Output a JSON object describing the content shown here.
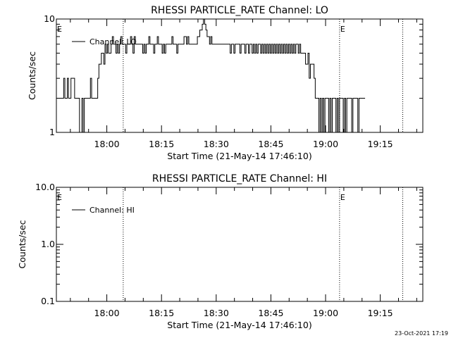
{
  "footer_stamp": "23-Oct-2021 17:19",
  "chart_data": [
    {
      "type": "line",
      "title": "RHESSI PARTICLE_RATE Channel: LO",
      "xlabel": "Start Time (21-May-14 17:46:10)",
      "ylabel": "Counts/sec",
      "yscale": "log",
      "ylim": [
        1,
        10
      ],
      "xlim": [
        "17:46:10",
        "19:26:40"
      ],
      "xticks": [
        "18:00",
        "18:15",
        "18:30",
        "18:45",
        "19:00",
        "19:15"
      ],
      "yticks": [
        "1",
        "10"
      ],
      "legend": "top-left",
      "event_lines": [
        {
          "time": "18:04:30",
          "label": ""
        },
        {
          "time": "19:03:50",
          "label": "E"
        },
        {
          "time": "19:21:10",
          "label": ""
        }
      ],
      "corner_label": "E",
      "series": [
        {
          "name": "Channel: LO",
          "x_start": "17:46:10",
          "x_step_sec": 20,
          "values": [
            2,
            2,
            2,
            2,
            2,
            2,
            3,
            2,
            2,
            3,
            2,
            2,
            3,
            3,
            3,
            2,
            2,
            2,
            2,
            1,
            1,
            2,
            1,
            2,
            2,
            2,
            2,
            2,
            3,
            2,
            2,
            2,
            2,
            2,
            3,
            4,
            4,
            5,
            5,
            4,
            6,
            5,
            6,
            5,
            5,
            6,
            7,
            6,
            6,
            5,
            6,
            5,
            6,
            7,
            6,
            6,
            6,
            5,
            6,
            6,
            6,
            7,
            6,
            5,
            7,
            6,
            6,
            6,
            6,
            6,
            6,
            5,
            6,
            5,
            6,
            6,
            7,
            6,
            6,
            6,
            5,
            6,
            6,
            7,
            6,
            6,
            6,
            5,
            6,
            5,
            6,
            6,
            6,
            6,
            6,
            7,
            6,
            6,
            6,
            5,
            6,
            6,
            6,
            6,
            6,
            7,
            7,
            6,
            7,
            6,
            6,
            6,
            6,
            6,
            6,
            6,
            7,
            7,
            8,
            8,
            9,
            10,
            9,
            8,
            7,
            7,
            6,
            7,
            6,
            6,
            6,
            6,
            6,
            6,
            6,
            6,
            6,
            6,
            6,
            6,
            6,
            6,
            6,
            5,
            6,
            6,
            5,
            6,
            6,
            6,
            6,
            5,
            6,
            6,
            6,
            5,
            6,
            6,
            5,
            6,
            6,
            5,
            6,
            5,
            6,
            5,
            6,
            6,
            5,
            6,
            5,
            6,
            5,
            6,
            5,
            6,
            5,
            6,
            5,
            6,
            5,
            6,
            5,
            6,
            5,
            6,
            5,
            6,
            5,
            6,
            5,
            6,
            5,
            6,
            5,
            6,
            5,
            6,
            6,
            5,
            6,
            5,
            5,
            5,
            5,
            4,
            4,
            5,
            3,
            4,
            4,
            4,
            3,
            2,
            2,
            2,
            1,
            2,
            1,
            2,
            1,
            2,
            2,
            2,
            1,
            2,
            1,
            2,
            2,
            2,
            1,
            2,
            1,
            2,
            2,
            2,
            1,
            2,
            1,
            2,
            2,
            2,
            2,
            1,
            2,
            2,
            2,
            2,
            1,
            2,
            2,
            2,
            2,
            2
          ]
        }
      ]
    },
    {
      "type": "line",
      "title": "RHESSI PARTICLE_RATE Channel: HI",
      "xlabel": "Start Time (21-May-14 17:46:10)",
      "ylabel": "Counts/sec",
      "yscale": "log",
      "ylim": [
        0.1,
        10
      ],
      "xlim": [
        "17:46:10",
        "19:26:40"
      ],
      "xticks": [
        "18:00",
        "18:15",
        "18:30",
        "18:45",
        "19:00",
        "19:15"
      ],
      "yticks": [
        "0.1",
        "1.0",
        "10.0"
      ],
      "legend": "top-left",
      "event_lines": [
        {
          "time": "18:04:30",
          "label": ""
        },
        {
          "time": "19:03:50",
          "label": "E"
        },
        {
          "time": "19:21:10",
          "label": ""
        }
      ],
      "corner_label": "E",
      "series": [
        {
          "name": "Channel: HI",
          "values": []
        }
      ]
    }
  ]
}
